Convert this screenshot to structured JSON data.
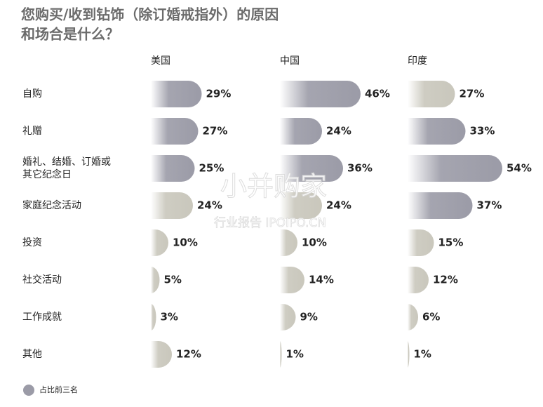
{
  "chart_data": {
    "type": "bar",
    "title": [
      "您购买/收到钻饰（除订婚戒指外）的原因",
      "和场合是什么？"
    ],
    "categories": [
      "自购",
      "礼赠",
      "婚礼、结婚、订婚或\n其它纪念日",
      "家庭纪念活动",
      "投资",
      "社交活动",
      "工作成就",
      "其他"
    ],
    "series": [
      {
        "name": "美国",
        "values": [
          29,
          27,
          25,
          24,
          10,
          5,
          3,
          12
        ],
        "value_labels": [
          "29%",
          "27%",
          "25%",
          "24%",
          "10%",
          "5%",
          "3%",
          "12%"
        ],
        "colors": [
          "#9b9ba7",
          "#9b9ba7",
          "#9b9ba7",
          "#c9c7bc",
          "#c9c7bc",
          "#c9c7bc",
          "#c9c7bc",
          "#c9c7bc"
        ]
      },
      {
        "name": "中国",
        "values": [
          46,
          24,
          36,
          24,
          10,
          14,
          9,
          1
        ],
        "value_labels": [
          "46%",
          "24%",
          "36%",
          "24%",
          "10%",
          "14%",
          "9%",
          "1%"
        ],
        "colors": [
          "#9b9ba7",
          "#9b9ba7",
          "#9b9ba7",
          "#c9c7bc",
          "#c9c7bc",
          "#c9c7bc",
          "#c9c7bc",
          "#c9c7bc"
        ]
      },
      {
        "name": "印度",
        "values": [
          27,
          33,
          54,
          37,
          15,
          12,
          6,
          1
        ],
        "value_labels": [
          "27%",
          "33%",
          "54%",
          "37%",
          "15%",
          "12%",
          "6%",
          "1%"
        ],
        "colors": [
          "#c9c7bc",
          "#9b9ba7",
          "#9b9ba7",
          "#9b9ba7",
          "#c9c7bc",
          "#c9c7bc",
          "#c9c7bc",
          "#c9c7bc"
        ]
      }
    ],
    "legend": {
      "label": "占比前三名",
      "color": "#9b9ba7"
    },
    "watermark": [
      "小并购家",
      "行业报告 IPOIPO.CN"
    ]
  }
}
